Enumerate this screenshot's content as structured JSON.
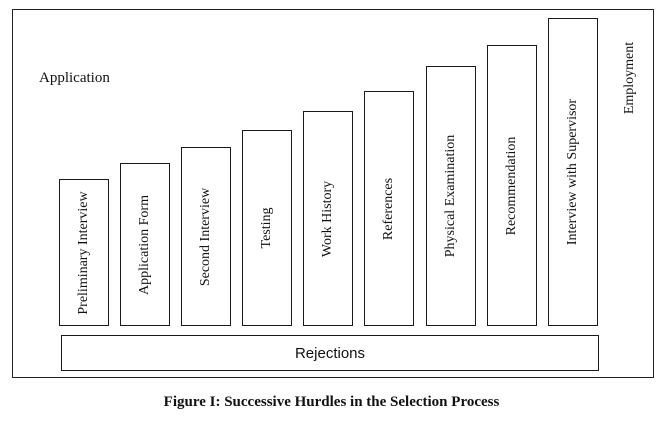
{
  "diagram": {
    "start_label": "Application",
    "end_label": "Employment",
    "hurdles": [
      "Preliminary Interview",
      "Application Form",
      "Second Interview",
      "Testing",
      "Work History",
      "References",
      "Physical Examination",
      "Recommendation",
      "Interview with Supervisor"
    ],
    "rejections_label": "Rejections"
  },
  "caption": "Figure I: Successive Hurdles in the Selection Process"
}
